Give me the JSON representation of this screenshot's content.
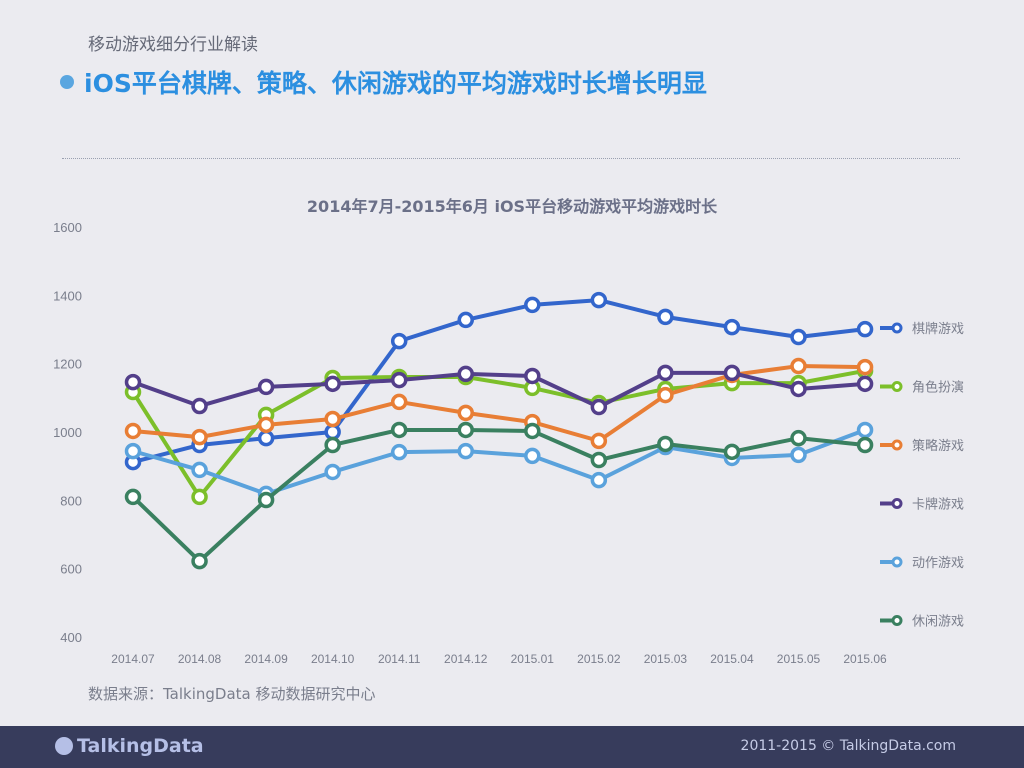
{
  "header": {
    "subtitle": "移动游戏细分行业解读",
    "headline": "iOS平台棋牌、策略、休闲游戏的平均游戏时长增长明显"
  },
  "chart_data": {
    "type": "line",
    "title": "2014年7月-2015年6月 iOS平台移动游戏平均游戏时长",
    "categories": [
      "2014.07",
      "2014.08",
      "2014.09",
      "2014.10",
      "2014.11",
      "2014.12",
      "2015.01",
      "2015.02",
      "2015.03",
      "2015.04",
      "2015.05",
      "2015.06"
    ],
    "ylim": [
      400,
      1600
    ],
    "yticks": [
      400,
      600,
      800,
      1000,
      1200,
      1400,
      1600
    ],
    "grid": false,
    "legend_placement": "right",
    "series": [
      {
        "name": "棋牌游戏",
        "color": "#3366cc",
        "values": [
          912,
          962,
          982,
          1000,
          1266,
          1328,
          1372,
          1386,
          1337,
          1307,
          1278,
          1301
        ]
      },
      {
        "name": "角色扮演",
        "color": "#7cbf2a",
        "values": [
          1117,
          810,
          1050,
          1158,
          1161,
          1161,
          1129,
          1085,
          1126,
          1143,
          1143,
          1179
        ]
      },
      {
        "name": "策略游戏",
        "color": "#e87e35",
        "values": [
          1003,
          985,
          1021,
          1038,
          1088,
          1056,
          1029,
          974,
          1108,
          1167,
          1193,
          1190
        ]
      },
      {
        "name": "卡牌游戏",
        "color": "#533f8a",
        "values": [
          1146,
          1076,
          1132,
          1141,
          1152,
          1170,
          1164,
          1073,
          1173,
          1173,
          1126,
          1141
        ]
      },
      {
        "name": "动作游戏",
        "color": "#5aa2dc",
        "values": [
          944,
          889,
          819,
          883,
          941,
          944,
          930,
          859,
          956,
          924,
          933,
          1006
        ]
      },
      {
        "name": "休闲游戏",
        "color": "#3a8060",
        "values": [
          810,
          622,
          801,
          962,
          1006,
          1006,
          1003,
          918,
          965,
          942,
          982,
          962
        ]
      }
    ]
  },
  "source": "数据来源：TalkingData 移动数据研究中心",
  "footer": {
    "logo": "TalkingData",
    "copyright": "2011-2015 © TalkingData.com"
  }
}
